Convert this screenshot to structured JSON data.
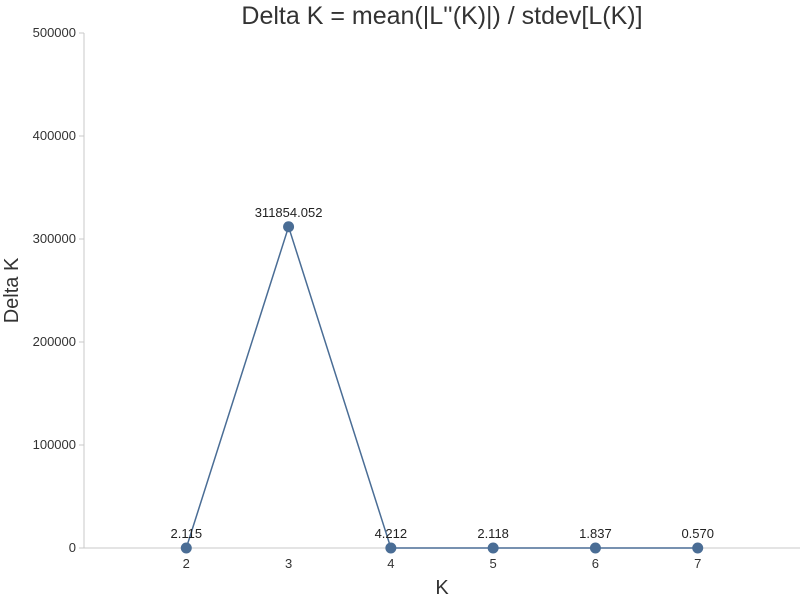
{
  "chart_data": {
    "type": "line",
    "title": "Delta K = mean(|L''(K)|) / stdev[L(K)]",
    "xlabel": "K",
    "ylabel": "Delta K",
    "x": [
      2,
      3,
      4,
      5,
      6,
      7
    ],
    "x_tick_labels": [
      "2",
      "3",
      "4",
      "5",
      "6",
      "7"
    ],
    "xlim": [
      1,
      8
    ],
    "ylim": [
      0,
      500000
    ],
    "y_ticks": [
      0,
      100000,
      200000,
      300000,
      400000,
      500000
    ],
    "y_tick_labels": [
      "0",
      "100000",
      "200000",
      "300000",
      "400000",
      "500000"
    ],
    "series": [
      {
        "values": [
          2.115,
          311854.052,
          4.212,
          2.118,
          1.837,
          0.57
        ],
        "data_labels": [
          "2.115",
          "311854.052",
          "4.212",
          "2.118",
          "1.837",
          "0.570"
        ],
        "color": "#4a6d95"
      }
    ],
    "grid": false,
    "legend": "none"
  }
}
